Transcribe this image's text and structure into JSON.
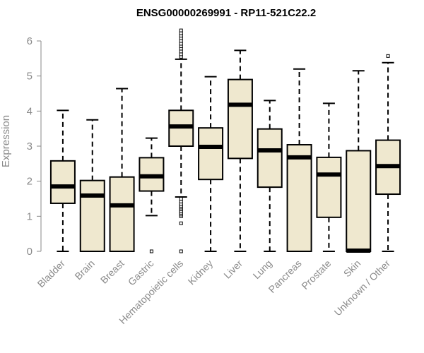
{
  "chart_data": {
    "type": "boxplot",
    "title": "ENSG00000269991 - RP11-521C22.2",
    "xlabel": "",
    "ylabel": "Expression",
    "ylim": [
      0,
      6.3
    ],
    "yticks": [
      0,
      1,
      2,
      3,
      4,
      5,
      6
    ],
    "box_fill": "#efe8cf",
    "categories": [
      "Bladder",
      "Brain",
      "Breast",
      "Gastric",
      "Hematopoietic cells",
      "Kidney",
      "Liver",
      "Lung",
      "Pancreas",
      "Prostate",
      "Skin",
      "Unknown / Other"
    ],
    "series": [
      {
        "name": "Bladder",
        "min": 0,
        "q1": 1.37,
        "median": 1.85,
        "q3": 2.58,
        "max": 4.02,
        "outliers": []
      },
      {
        "name": "Brain",
        "min": 0,
        "q1": 0,
        "median": 1.59,
        "q3": 2.02,
        "max": 3.75,
        "outliers": []
      },
      {
        "name": "Breast",
        "min": 0,
        "q1": 0,
        "median": 1.31,
        "q3": 2.12,
        "max": 4.64,
        "outliers": []
      },
      {
        "name": "Gastric",
        "min": 1.02,
        "q1": 1.72,
        "median": 2.14,
        "q3": 2.67,
        "max": 3.23,
        "outliers": [
          0
        ]
      },
      {
        "name": "Hematopoietic cells",
        "min": 1.55,
        "q1": 3.0,
        "median": 3.56,
        "q3": 4.02,
        "max": 5.48,
        "outliers": [
          0,
          0.8,
          1.0,
          1.05,
          1.1,
          1.15,
          1.2,
          1.25,
          1.3,
          1.35,
          1.42,
          1.5,
          5.55,
          5.62,
          5.7,
          5.78,
          5.85,
          5.92,
          6.0,
          6.08,
          6.15,
          6.22,
          6.3
        ]
      },
      {
        "name": "Kidney",
        "min": 0,
        "q1": 2.05,
        "median": 2.98,
        "q3": 3.52,
        "max": 4.98,
        "outliers": []
      },
      {
        "name": "Liver",
        "min": 0,
        "q1": 2.65,
        "median": 4.18,
        "q3": 4.9,
        "max": 5.73,
        "outliers": []
      },
      {
        "name": "Lung",
        "min": 0,
        "q1": 1.83,
        "median": 2.88,
        "q3": 3.49,
        "max": 4.3,
        "outliers": []
      },
      {
        "name": "Pancreas",
        "min": 0,
        "q1": 0,
        "median": 2.68,
        "q3": 3.04,
        "max": 5.2,
        "outliers": []
      },
      {
        "name": "Prostate",
        "min": 0,
        "q1": 0.97,
        "median": 2.19,
        "q3": 2.68,
        "max": 4.22,
        "outliers": []
      },
      {
        "name": "Skin",
        "min": 0,
        "q1": 0,
        "median": 0.02,
        "q3": 2.87,
        "max": 5.15,
        "outliers": []
      },
      {
        "name": "Unknown / Other",
        "min": 0,
        "q1": 1.63,
        "median": 2.43,
        "q3": 3.17,
        "max": 5.38,
        "outliers": [
          5.57
        ]
      }
    ]
  }
}
